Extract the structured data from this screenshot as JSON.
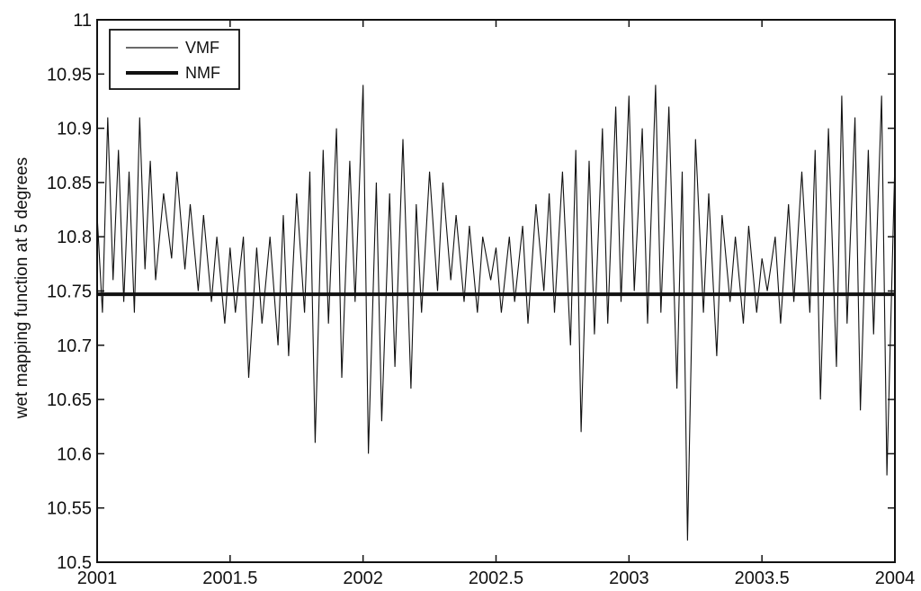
{
  "chart_data": {
    "type": "line",
    "title": "",
    "xlabel": "",
    "ylabel": "wet mapping function at 5 degrees",
    "xlim": [
      2001,
      2004
    ],
    "ylim": [
      10.5,
      11
    ],
    "grid": false,
    "legend_position": "top-left",
    "x_ticks": [
      "2001",
      "2001.5",
      "2002",
      "2002.5",
      "2003",
      "2003.5",
      "2004"
    ],
    "y_ticks": [
      "10.5",
      "10.55",
      "10.6",
      "10.65",
      "10.7",
      "10.75",
      "10.8",
      "10.85",
      "10.9",
      "10.95",
      "11"
    ],
    "series": [
      {
        "name": "VMF",
        "style": "thin",
        "color": "#111111",
        "x": [
          2001.0,
          2001.02,
          2001.04,
          2001.06,
          2001.08,
          2001.1,
          2001.12,
          2001.14,
          2001.16,
          2001.18,
          2001.2,
          2001.22,
          2001.25,
          2001.28,
          2001.3,
          2001.33,
          2001.35,
          2001.38,
          2001.4,
          2001.43,
          2001.45,
          2001.48,
          2001.5,
          2001.52,
          2001.55,
          2001.57,
          2001.6,
          2001.62,
          2001.65,
          2001.68,
          2001.7,
          2001.72,
          2001.75,
          2001.78,
          2001.8,
          2001.82,
          2001.85,
          2001.87,
          2001.9,
          2001.92,
          2001.95,
          2001.97,
          2002.0,
          2002.02,
          2002.05,
          2002.07,
          2002.1,
          2002.12,
          2002.15,
          2002.18,
          2002.2,
          2002.22,
          2002.25,
          2002.28,
          2002.3,
          2002.33,
          2002.35,
          2002.38,
          2002.4,
          2002.43,
          2002.45,
          2002.48,
          2002.5,
          2002.52,
          2002.55,
          2002.57,
          2002.6,
          2002.62,
          2002.65,
          2002.68,
          2002.7,
          2002.72,
          2002.75,
          2002.78,
          2002.8,
          2002.82,
          2002.85,
          2002.87,
          2002.9,
          2002.92,
          2002.95,
          2002.97,
          2003.0,
          2003.02,
          2003.05,
          2003.07,
          2003.1,
          2003.12,
          2003.15,
          2003.18,
          2003.2,
          2003.22,
          2003.25,
          2003.28,
          2003.3,
          2003.33,
          2003.35,
          2003.38,
          2003.4,
          2003.43,
          2003.45,
          2003.48,
          2003.5,
          2003.52,
          2003.55,
          2003.57,
          2003.6,
          2003.62,
          2003.65,
          2003.68,
          2003.7,
          2003.72,
          2003.75,
          2003.78,
          2003.8,
          2003.82,
          2003.85,
          2003.87,
          2003.9,
          2003.92,
          2003.95,
          2003.97,
          2004.0
        ],
        "y": [
          10.82,
          10.73,
          10.91,
          10.76,
          10.88,
          10.74,
          10.86,
          10.73,
          10.91,
          10.77,
          10.87,
          10.76,
          10.84,
          10.78,
          10.86,
          10.77,
          10.83,
          10.75,
          10.82,
          10.74,
          10.8,
          10.72,
          10.79,
          10.73,
          10.8,
          10.67,
          10.79,
          10.72,
          10.8,
          10.7,
          10.82,
          10.69,
          10.84,
          10.73,
          10.86,
          10.61,
          10.88,
          10.72,
          10.9,
          10.67,
          10.87,
          10.74,
          10.94,
          10.6,
          10.85,
          10.63,
          10.84,
          10.68,
          10.89,
          10.66,
          10.83,
          10.73,
          10.86,
          10.75,
          10.85,
          10.76,
          10.82,
          10.74,
          10.81,
          10.73,
          10.8,
          10.76,
          10.79,
          10.73,
          10.8,
          10.74,
          10.81,
          10.72,
          10.83,
          10.75,
          10.84,
          10.73,
          10.86,
          10.7,
          10.88,
          10.62,
          10.87,
          10.71,
          10.9,
          10.72,
          10.92,
          10.74,
          10.93,
          10.75,
          10.9,
          10.72,
          10.94,
          10.73,
          10.92,
          10.66,
          10.86,
          10.52,
          10.89,
          10.73,
          10.84,
          10.69,
          10.82,
          10.74,
          10.8,
          10.72,
          10.81,
          10.73,
          10.78,
          10.75,
          10.8,
          10.72,
          10.83,
          10.74,
          10.86,
          10.73,
          10.88,
          10.65,
          10.9,
          10.68,
          10.93,
          10.72,
          10.91,
          10.64,
          10.88,
          10.71,
          10.93,
          10.58,
          10.87
        ]
      },
      {
        "name": "NMF",
        "style": "thick",
        "color": "#111111",
        "x": [
          2001,
          2004
        ],
        "y": [
          10.747,
          10.747
        ]
      }
    ]
  }
}
